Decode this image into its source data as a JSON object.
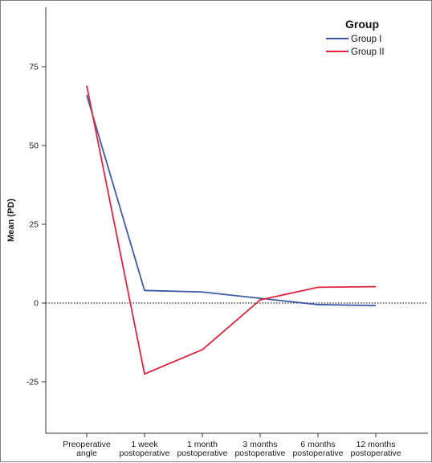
{
  "chart_data": {
    "type": "line",
    "title": "",
    "xlabel": "",
    "ylabel": "Mean (PD)",
    "categories": [
      [
        "Preoperative",
        "angle"
      ],
      [
        "1 week",
        "postoperative"
      ],
      [
        "1 month",
        "postoperative"
      ],
      [
        "3 months",
        "postoperative"
      ],
      [
        "6 months",
        "postoperative"
      ],
      [
        "12 months",
        "postoperative"
      ]
    ],
    "ylim": [
      -40,
      90
    ],
    "yticks": [
      -25,
      0,
      25,
      50,
      75
    ],
    "reference_line": {
      "y": 0,
      "style": "dotted"
    },
    "legend": {
      "title": "Group",
      "position": "top-right"
    },
    "series": [
      {
        "name": "Group I",
        "color": "#3b5aa8",
        "values": [
          66.0,
          4.0,
          3.5,
          1.5,
          -0.5,
          -0.8
        ]
      },
      {
        "name": "Group II",
        "color": "#e0243c",
        "values": [
          69.0,
          -22.5,
          -14.8,
          1.0,
          5.0,
          5.2
        ]
      }
    ]
  }
}
